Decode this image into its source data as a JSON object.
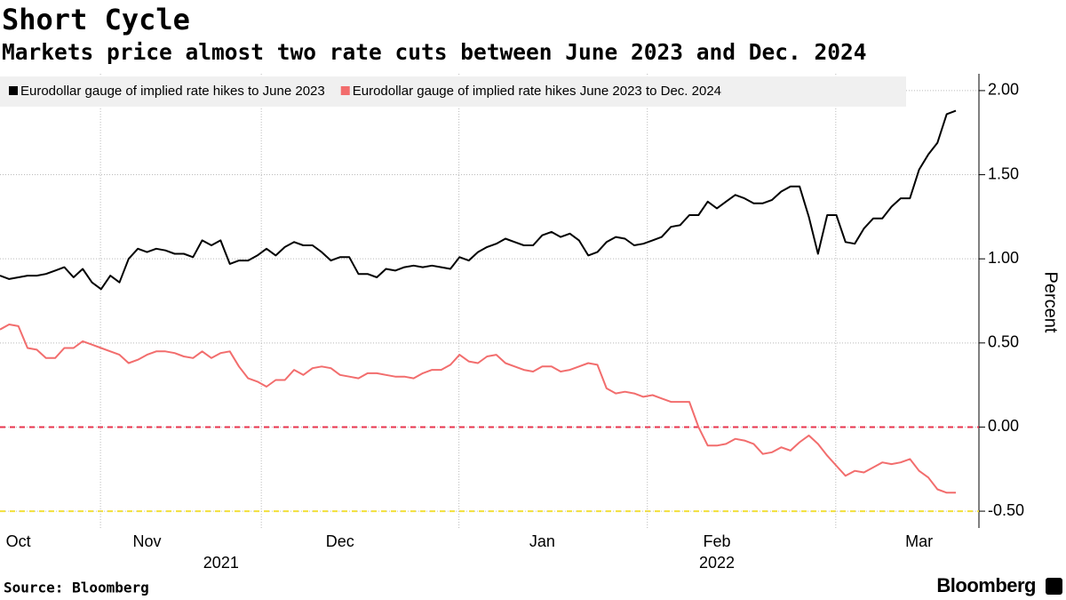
{
  "chart_data": {
    "type": "line",
    "title": "Short Cycle",
    "subtitle": "Markets price almost two rate cuts between June 2023 and Dec. 2024",
    "source": "Source: Bloomberg",
    "brand": "Bloomberg",
    "y_label": "Percent",
    "year_labels": [
      "2021",
      "2022"
    ],
    "categories": [
      null,
      null,
      "Oct",
      null,
      null,
      null,
      null,
      null,
      null,
      null,
      null,
      null,
      null,
      null,
      null,
      null,
      "Nov",
      null,
      null,
      null,
      null,
      null,
      null,
      null,
      null,
      null,
      null,
      null,
      null,
      null,
      null,
      null,
      null,
      null,
      null,
      null,
      null,
      "Dec",
      null,
      null,
      null,
      null,
      null,
      null,
      null,
      null,
      null,
      null,
      null,
      null,
      null,
      null,
      null,
      null,
      null,
      null,
      null,
      null,
      null,
      "Jan",
      null,
      null,
      null,
      null,
      null,
      null,
      null,
      null,
      null,
      null,
      null,
      null,
      null,
      null,
      null,
      null,
      null,
      null,
      "Feb",
      null,
      null,
      null,
      null,
      null,
      null,
      null,
      null,
      null,
      null,
      null,
      null,
      null,
      null,
      null,
      null,
      null,
      null,
      null,
      null,
      null,
      "Mar",
      null,
      null,
      null,
      null
    ],
    "series": [
      {
        "name": "Eurodollar gauge of implied rate hikes to June 2023",
        "color": "#000000",
        "values": [
          0.9,
          0.88,
          0.89,
          0.9,
          0.9,
          0.91,
          0.93,
          0.95,
          0.89,
          0.94,
          0.86,
          0.82,
          0.9,
          0.86,
          1.0,
          1.06,
          1.04,
          1.06,
          1.05,
          1.03,
          1.03,
          1.01,
          1.11,
          1.08,
          1.11,
          0.97,
          0.99,
          0.99,
          1.02,
          1.06,
          1.02,
          1.07,
          1.1,
          1.08,
          1.08,
          1.04,
          0.99,
          1.01,
          1.01,
          0.91,
          0.91,
          0.89,
          0.94,
          0.93,
          0.95,
          0.96,
          0.95,
          0.96,
          0.95,
          0.94,
          1.01,
          0.99,
          1.04,
          1.07,
          1.09,
          1.12,
          1.1,
          1.08,
          1.08,
          1.14,
          1.16,
          1.13,
          1.15,
          1.11,
          1.02,
          1.04,
          1.1,
          1.13,
          1.12,
          1.08,
          1.09,
          1.11,
          1.13,
          1.19,
          1.2,
          1.26,
          1.26,
          1.34,
          1.3,
          1.34,
          1.38,
          1.36,
          1.33,
          1.33,
          1.35,
          1.4,
          1.43,
          1.43,
          1.25,
          1.03,
          1.26,
          1.26,
          1.1,
          1.09,
          1.18,
          1.24,
          1.24,
          1.31,
          1.36,
          1.36,
          1.53,
          1.62,
          1.69,
          1.86,
          1.88
        ]
      },
      {
        "name": "Eurodollar gauge of implied rate hikes June 2023 to Dec. 2024",
        "color": "#f26d6d",
        "values": [
          0.58,
          0.61,
          0.6,
          0.47,
          0.46,
          0.41,
          0.41,
          0.47,
          0.47,
          0.51,
          0.49,
          0.47,
          0.45,
          0.43,
          0.38,
          0.4,
          0.43,
          0.45,
          0.45,
          0.44,
          0.42,
          0.41,
          0.45,
          0.41,
          0.44,
          0.45,
          0.36,
          0.29,
          0.27,
          0.24,
          0.28,
          0.28,
          0.34,
          0.31,
          0.35,
          0.36,
          0.35,
          0.31,
          0.3,
          0.29,
          0.32,
          0.32,
          0.31,
          0.3,
          0.3,
          0.29,
          0.32,
          0.34,
          0.34,
          0.37,
          0.43,
          0.39,
          0.38,
          0.42,
          0.43,
          0.38,
          0.36,
          0.34,
          0.33,
          0.36,
          0.36,
          0.33,
          0.34,
          0.36,
          0.38,
          0.37,
          0.23,
          0.2,
          0.21,
          0.2,
          0.18,
          0.19,
          0.17,
          0.15,
          0.15,
          0.15,
          0.0,
          -0.11,
          -0.11,
          -0.1,
          -0.07,
          -0.08,
          -0.1,
          -0.16,
          -0.15,
          -0.12,
          -0.14,
          -0.09,
          -0.05,
          -0.1,
          -0.17,
          -0.23,
          -0.29,
          -0.26,
          -0.27,
          -0.24,
          -0.21,
          -0.22,
          -0.21,
          -0.19,
          -0.26,
          -0.3,
          -0.37,
          -0.39,
          -0.39
        ]
      }
    ],
    "ylim": [
      -0.6,
      2.1
    ],
    "yticks": [
      {
        "value": -0.5,
        "label": "-0.50"
      },
      {
        "value": 0,
        "label": "0.00"
      },
      {
        "value": 0.5,
        "label": "0.50"
      },
      {
        "value": 1,
        "label": "1.00"
      },
      {
        "value": 1.5,
        "label": "1.50"
      },
      {
        "value": 2,
        "label": "2.00"
      }
    ],
    "grid": true,
    "reference_lines": [
      {
        "value": 0,
        "color": "#e8344e"
      },
      {
        "value": -0.5,
        "color": "#f2e03a"
      }
    ]
  }
}
